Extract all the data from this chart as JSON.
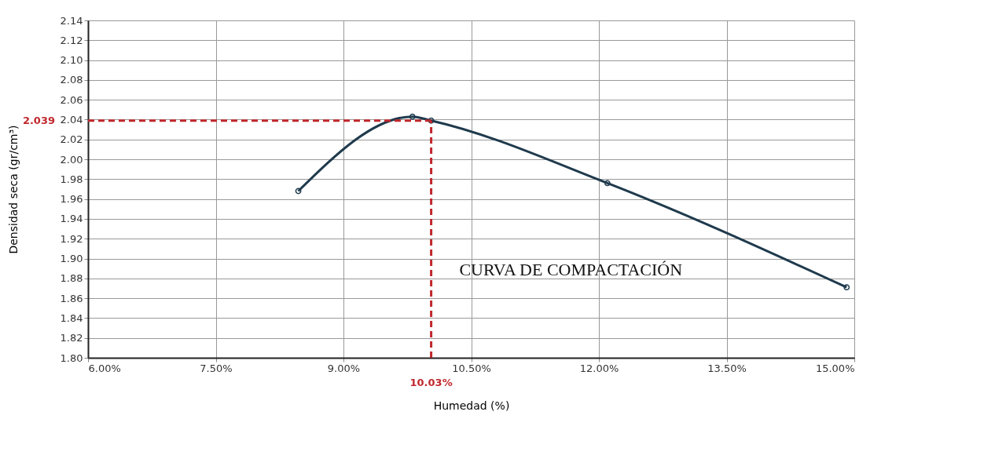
{
  "chart_data": {
    "type": "line",
    "xlabel": "Humedad (%)",
    "ylabel": "Densidad seca (gr/cm³)",
    "x": [
      8.47,
      9.81,
      10.03,
      12.1,
      14.91
    ],
    "series": [
      {
        "color": "#1f3a4d",
        "values": [
          1.968,
          2.043,
          2.039,
          1.976,
          1.871
        ]
      }
    ],
    "xlim": [
      6,
      15
    ],
    "xticks": [
      {
        "value": 6,
        "label": "6.00%"
      },
      {
        "value": 7.5,
        "label": "7.50%"
      },
      {
        "value": 9,
        "label": "9.00%"
      },
      {
        "value": 10.5,
        "label": "10.50%"
      },
      {
        "value": 12,
        "label": "12.00%"
      },
      {
        "value": 13.5,
        "label": "13.50%"
      },
      {
        "value": 15,
        "label": "15.00%"
      }
    ],
    "ylim": [
      1.8,
      2.14
    ],
    "yticks": [
      {
        "value": 1.8,
        "label": "1.80"
      },
      {
        "value": 1.82,
        "label": "1.82"
      },
      {
        "value": 1.84,
        "label": "1.84"
      },
      {
        "value": 1.86,
        "label": "1.86"
      },
      {
        "value": 1.88,
        "label": "1.88"
      },
      {
        "value": 1.9,
        "label": "1.90"
      },
      {
        "value": 1.92,
        "label": "1.92"
      },
      {
        "value": 1.94,
        "label": "1.94"
      },
      {
        "value": 1.96,
        "label": "1.96"
      },
      {
        "value": 1.98,
        "label": "1.98"
      },
      {
        "value": 2.0,
        "label": "2.00"
      },
      {
        "value": 2.02,
        "label": "2.02"
      },
      {
        "value": 2.04,
        "label": "2.04"
      },
      {
        "value": 2.06,
        "label": "2.06"
      },
      {
        "value": 2.08,
        "label": "2.08"
      },
      {
        "value": 2.1,
        "label": "2.10"
      },
      {
        "value": 2.12,
        "label": "2.12"
      },
      {
        "value": 2.14,
        "label": "2.14"
      }
    ],
    "ref_lines": [
      {
        "axis": "x",
        "value": 10.03,
        "label": "10.03%",
        "color": "#c0282d",
        "line_style": "dashed"
      },
      {
        "axis": "y",
        "value": 2.039,
        "label": "2.039",
        "color": "#c0282d",
        "line_style": "dashed"
      }
    ],
    "annotations": [
      "CURVA DE COMPACTACIÓN"
    ],
    "grid": true,
    "marker": "circle",
    "line_style": "solid"
  }
}
